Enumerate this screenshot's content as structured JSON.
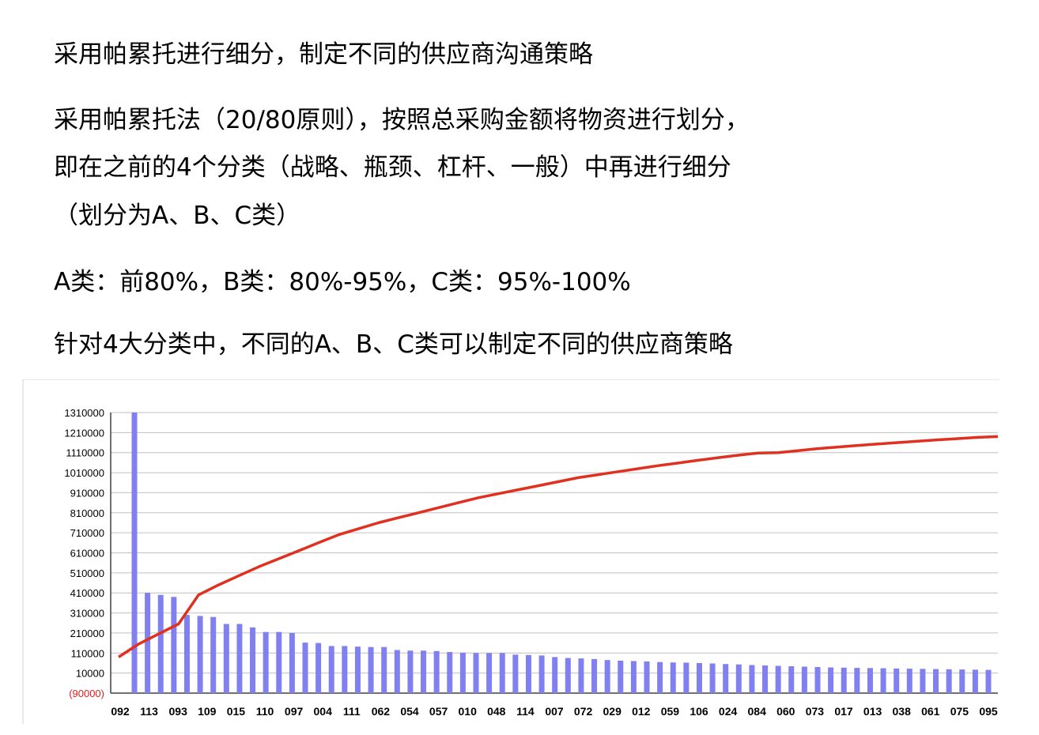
{
  "text": {
    "line1": "采用帕累托进行细分，制定不同的供应商沟通策略",
    "line2": "采用帕累托法（20/80原则），按照总采购金额将物资进行划分，",
    "line3": "即在之前的4个分类（战略、瓶颈、杠杆、一般）中再进行细分",
    "line4": "（划分为A、B、C类）",
    "line5": "A类：前80%，B类：80%-95%，C类：95%-100%",
    "line6": "针对4大分类中，不同的A、B、C类可以制定不同的供应商策略"
  },
  "chart_data": {
    "type": "bar",
    "colors": {
      "bars": "#8080f0",
      "line": "#e03020",
      "grid": "#c0c0c0",
      "negative_label": "#e02020"
    },
    "y_ticks": [
      "1310000",
      "1210000",
      "1110000",
      "1010000",
      "910000",
      "810000",
      "710000",
      "610000",
      "510000",
      "410000",
      "310000",
      "210000",
      "110000",
      "10000",
      "(90000)"
    ],
    "ylim": [
      -90000,
      1310000
    ],
    "x_labels": [
      "092",
      "113",
      "093",
      "109",
      "015",
      "110",
      "097",
      "004",
      "111",
      "062",
      "054",
      "057",
      "010",
      "048",
      "114",
      "007",
      "072",
      "029",
      "012",
      "059",
      "106",
      "024",
      "084",
      "060",
      "073",
      "017",
      "013",
      "038",
      "061",
      "075",
      "095"
    ],
    "series": [
      {
        "kind": "bar",
        "values": [
          1310000,
          410000,
          400000,
          390000,
          300000,
          295000,
          290000,
          255000,
          255000,
          238000,
          215000,
          215000,
          210000,
          162000,
          160000,
          145000,
          145000,
          142000,
          140000,
          140000,
          125000,
          122000,
          122000,
          120000,
          115000,
          112000,
          110000,
          110000,
          110000,
          102000,
          100000,
          98000,
          90000,
          85000,
          83000,
          80000,
          75000,
          72000,
          70000,
          68000,
          65000,
          63000,
          62000,
          60000,
          58000,
          55000,
          53000,
          50000,
          48000,
          46000,
          44000,
          42000,
          40000,
          38000,
          37000,
          36000,
          35000,
          34000,
          33000,
          32000,
          31000,
          30000,
          29000,
          28000,
          27000,
          26000
        ]
      },
      {
        "kind": "line",
        "values": [
          90000,
          155000,
          205000,
          255000,
          400000,
          450000,
          495000,
          540000,
          580000,
          620000,
          660000,
          700000,
          730000,
          760000,
          785000,
          810000,
          835000,
          860000,
          885000,
          905000,
          925000,
          945000,
          965000,
          985000,
          1000000,
          1015000,
          1030000,
          1045000,
          1058000,
          1072000,
          1085000,
          1097000,
          1108000,
          1110000,
          1120000,
          1130000,
          1138000,
          1146000,
          1153000,
          1160000,
          1167000,
          1174000,
          1180000,
          1186000,
          1190000
        ]
      }
    ]
  }
}
